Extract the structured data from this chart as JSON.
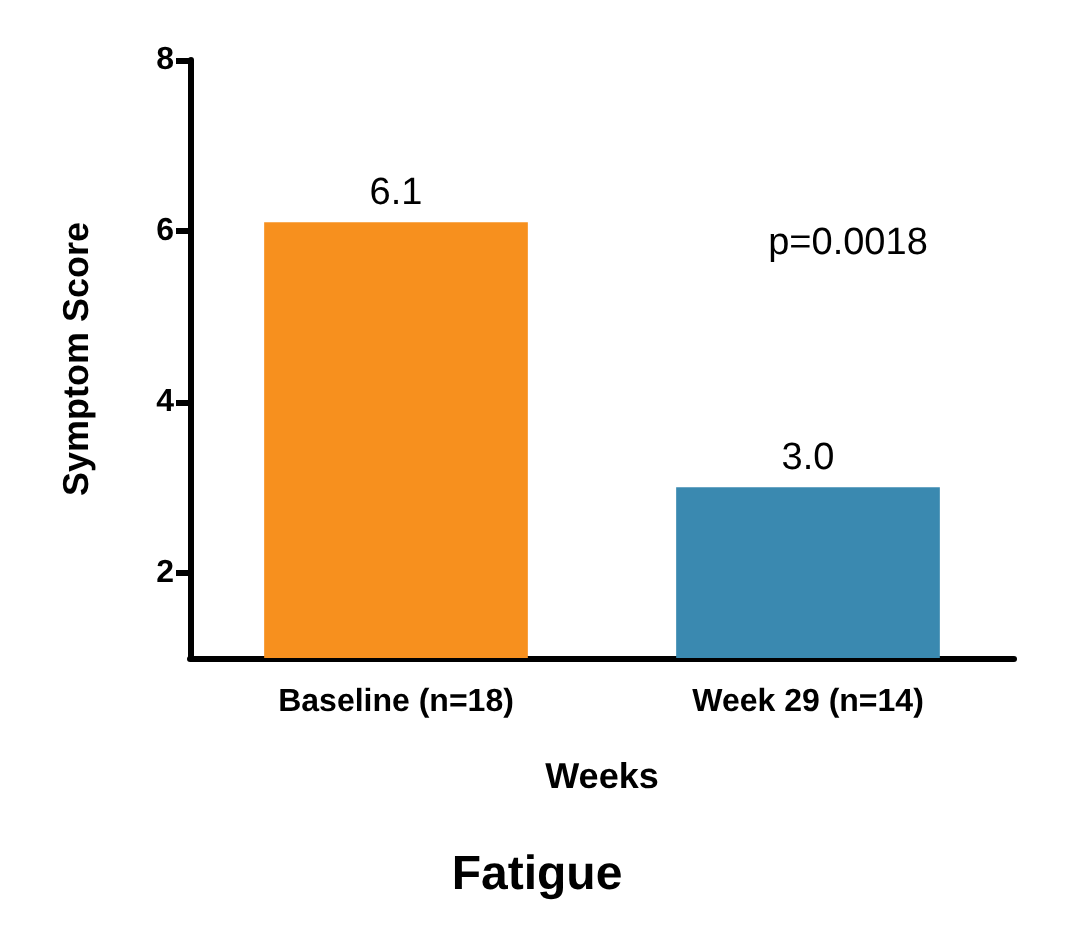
{
  "chart_data": {
    "type": "bar",
    "title": "Fatigue",
    "xlabel": "Weeks",
    "ylabel": "Symptom Score",
    "categories": [
      "Baseline (n=18)",
      "Week 29 (n=14)"
    ],
    "values": [
      6.1,
      3.0
    ],
    "colors": [
      "#f7901e",
      "#3a89b0"
    ],
    "value_labels": [
      "6.1",
      "3.0"
    ],
    "ylim": [
      1,
      8
    ],
    "yticks": [
      2,
      4,
      6,
      8
    ],
    "grid": false,
    "annotations": [
      "p=0.0018"
    ]
  }
}
